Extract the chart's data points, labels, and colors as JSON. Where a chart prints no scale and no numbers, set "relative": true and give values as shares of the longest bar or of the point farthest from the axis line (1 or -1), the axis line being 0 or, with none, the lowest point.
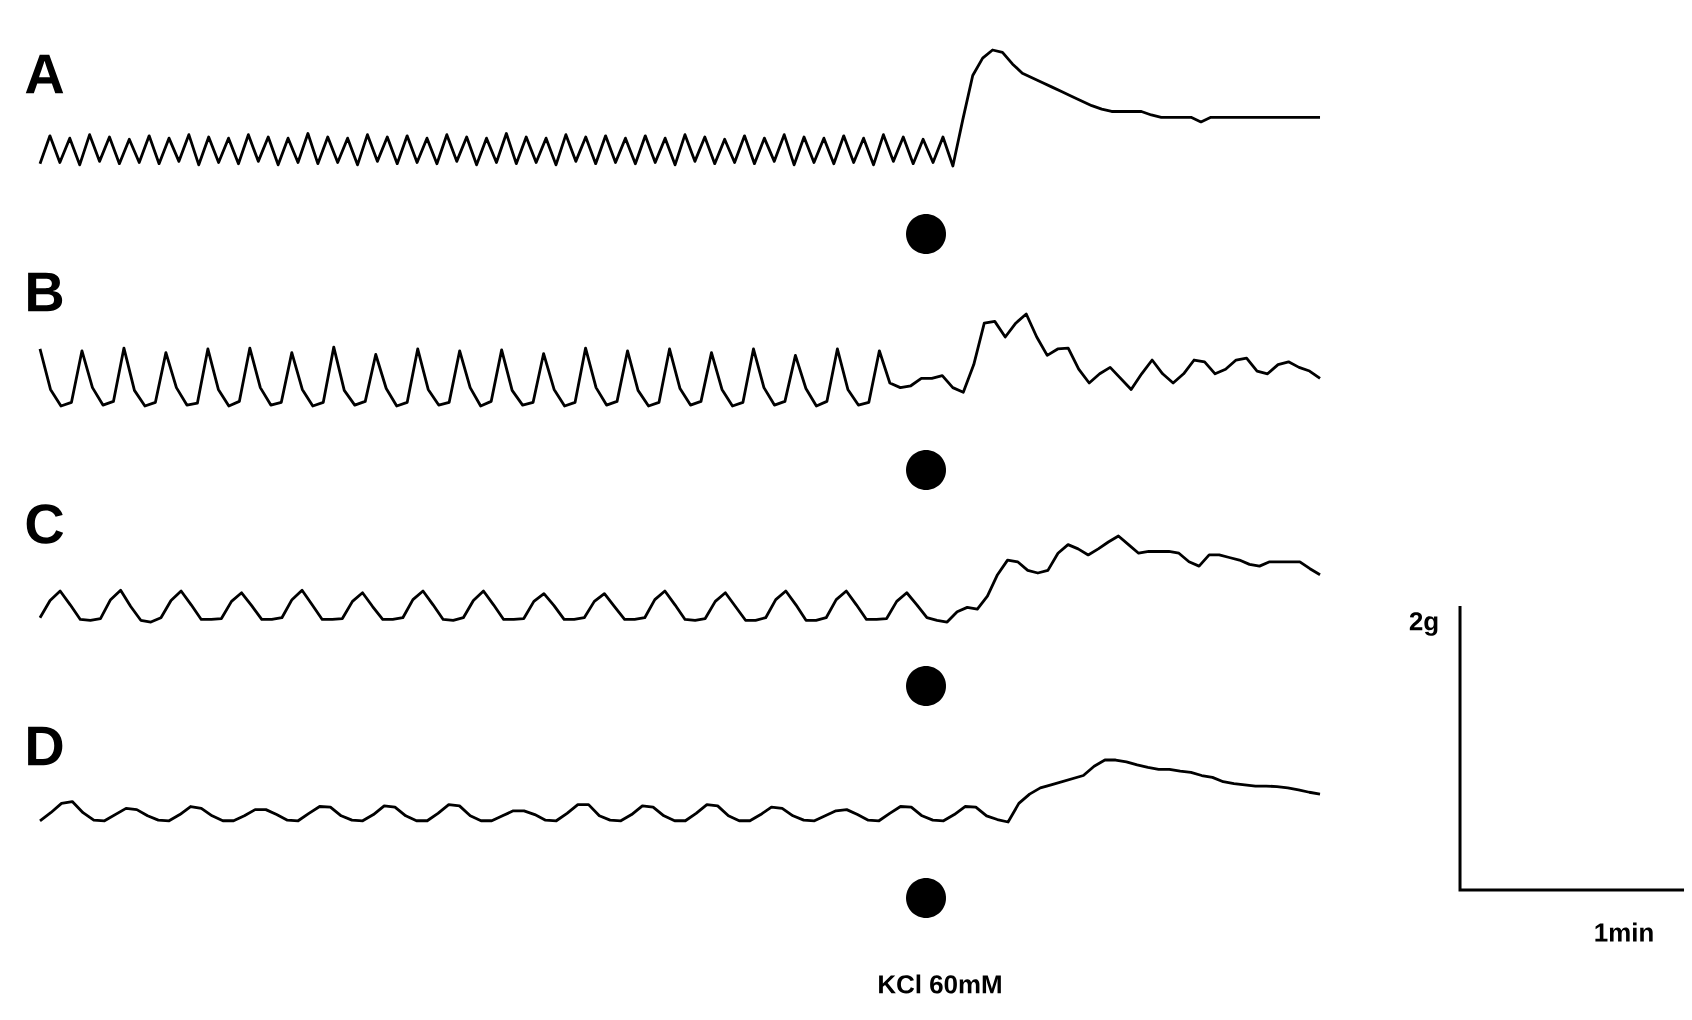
{
  "chart_data": [
    {
      "type": "line",
      "title": "A",
      "relative": true,
      "categories": [
        null,
        null,
        null,
        null,
        null,
        null,
        null,
        null,
        null,
        null,
        null,
        null,
        null,
        null,
        null,
        null,
        null,
        null,
        null,
        null,
        null,
        null,
        null,
        null,
        null,
        null,
        null,
        null,
        null,
        null,
        null,
        null,
        null,
        null,
        null,
        null,
        null,
        null,
        null,
        null,
        null,
        null,
        null,
        null,
        null,
        null,
        null,
        null,
        null,
        null,
        null,
        null,
        null,
        null,
        null,
        null,
        null,
        null,
        null,
        null,
        null,
        null,
        null,
        null,
        null,
        null,
        null,
        null,
        null,
        null,
        null,
        null,
        null,
        null,
        null,
        null,
        null,
        null,
        null,
        null,
        null,
        null,
        null,
        null,
        null,
        null,
        null,
        null,
        null,
        null,
        null,
        null,
        null,
        null,
        null,
        null,
        null,
        null,
        null,
        null,
        null,
        null,
        null,
        null,
        null,
        null,
        null,
        null,
        null,
        null,
        null,
        null,
        null,
        null,
        null,
        null,
        null,
        null,
        null,
        null,
        null,
        null,
        null,
        null,
        null,
        null,
        null,
        null,
        null,
        null
      ],
      "series": [
        {
          "color": "#000000",
          "values": [
            0.02,
            0.26,
            0.03,
            0.24,
            0.01,
            0.27,
            0.04,
            0.25,
            0.02,
            0.23,
            0.03,
            0.26,
            0.02,
            0.24,
            0.04,
            0.27,
            0.01,
            0.25,
            0.03,
            0.24,
            0.02,
            0.27,
            0.04,
            0.25,
            0.01,
            0.24,
            0.03,
            0.28,
            0.02,
            0.25,
            0.03,
            0.24,
            0.01,
            0.27,
            0.04,
            0.25,
            0.02,
            0.26,
            0.03,
            0.24,
            0.02,
            0.27,
            0.04,
            0.25,
            0.01,
            0.24,
            0.03,
            0.28,
            0.02,
            0.25,
            0.03,
            0.24,
            0.01,
            0.27,
            0.04,
            0.25,
            0.02,
            0.26,
            0.03,
            0.24,
            0.02,
            0.26,
            0.03,
            0.24,
            0.01,
            0.27,
            0.04,
            0.25,
            0.02,
            0.23,
            0.03,
            0.26,
            0.02,
            0.24,
            0.04,
            0.27,
            0.01,
            0.25,
            0.03,
            0.24,
            0.02,
            0.26,
            0.03,
            0.24,
            0.01,
            0.27,
            0.04,
            0.25,
            0.02,
            0.23,
            0.03,
            0.25,
            0.0,
            0.4,
            0.78,
            0.93,
            1,
            0.98,
            0.88,
            0.8,
            0.76,
            0.72,
            0.68,
            0.64,
            0.6,
            0.56,
            0.52,
            0.49,
            0.47,
            0.47,
            0.47,
            0.47,
            0.44,
            0.42,
            0.42,
            0.42,
            0.42,
            0.38,
            0.42,
            0.42,
            0.42,
            0.42,
            0.42,
            0.42,
            0.42,
            0.42,
            0.42,
            0.42,
            0.42,
            0.42
          ]
        }
      ]
    },
    {
      "type": "line",
      "title": "B",
      "relative": true,
      "categories": [
        null,
        null,
        null,
        null,
        null,
        null,
        null,
        null,
        null,
        null,
        null,
        null,
        null,
        null,
        null,
        null,
        null,
        null,
        null,
        null,
        null,
        null,
        null,
        null,
        null,
        null,
        null,
        null,
        null,
        null,
        null,
        null,
        null,
        null,
        null,
        null,
        null,
        null,
        null,
        null,
        null,
        null,
        null,
        null,
        null,
        null,
        null,
        null,
        null,
        null,
        null,
        null,
        null,
        null,
        null,
        null,
        null,
        null,
        null,
        null,
        null,
        null,
        null,
        null,
        null,
        null,
        null,
        null,
        null,
        null,
        null,
        null,
        null,
        null,
        null,
        null,
        null,
        null,
        null,
        null,
        null,
        null,
        null,
        null,
        null,
        null,
        null,
        null,
        null,
        null,
        null,
        null,
        null,
        null,
        null,
        null,
        null,
        null,
        null,
        null,
        null,
        null,
        null,
        null,
        null,
        null,
        null,
        null,
        null,
        null,
        null,
        null,
        null,
        null,
        null,
        null,
        null,
        null,
        null,
        null,
        null,
        null,
        null
      ],
      "series": [
        {
          "color": "#000000",
          "values": [
            0.62,
            0.18,
            0.0,
            0.04,
            0.6,
            0.2,
            0.01,
            0.05,
            0.63,
            0.17,
            0.0,
            0.04,
            0.58,
            0.2,
            0.01,
            0.03,
            0.62,
            0.18,
            0.0,
            0.05,
            0.63,
            0.2,
            0.01,
            0.04,
            0.58,
            0.18,
            0.0,
            0.04,
            0.64,
            0.17,
            0.01,
            0.05,
            0.56,
            0.19,
            0.0,
            0.04,
            0.62,
            0.18,
            0.01,
            0.04,
            0.6,
            0.2,
            0.0,
            0.05,
            0.61,
            0.17,
            0.01,
            0.04,
            0.57,
            0.18,
            0.0,
            0.04,
            0.63,
            0.2,
            0.01,
            0.05,
            0.6,
            0.17,
            0.0,
            0.04,
            0.62,
            0.19,
            0.01,
            0.05,
            0.58,
            0.18,
            0.0,
            0.04,
            0.62,
            0.2,
            0.01,
            0.05,
            0.55,
            0.19,
            0.0,
            0.05,
            0.62,
            0.18,
            0.01,
            0.04,
            0.6,
            0.25,
            0.2,
            0.22,
            0.3,
            0.3,
            0.33,
            0.2,
            0.15,
            0.45,
            0.9,
            0.92,
            0.75,
            0.9,
            1.0,
            0.75,
            0.55,
            0.62,
            0.63,
            0.4,
            0.25,
            0.35,
            0.42,
            0.3,
            0.18,
            0.35,
            0.5,
            0.35,
            0.25,
            0.35,
            0.5,
            0.48,
            0.35,
            0.4,
            0.5,
            0.52,
            0.38,
            0.35,
            0.45,
            0.48,
            0.42,
            0.38,
            0.3
          ]
        }
      ]
    },
    {
      "type": "line",
      "title": "C",
      "relative": true,
      "categories": [
        null,
        null,
        null,
        null,
        null,
        null,
        null,
        null,
        null,
        null,
        null,
        null,
        null,
        null,
        null,
        null,
        null,
        null,
        null,
        null,
        null,
        null,
        null,
        null,
        null,
        null,
        null,
        null,
        null,
        null,
        null,
        null,
        null,
        null,
        null,
        null,
        null,
        null,
        null,
        null,
        null,
        null,
        null,
        null,
        null,
        null,
        null,
        null,
        null,
        null,
        null,
        null,
        null,
        null,
        null,
        null,
        null,
        null,
        null,
        null,
        null,
        null,
        null,
        null,
        null,
        null,
        null,
        null,
        null,
        null,
        null,
        null,
        null,
        null,
        null,
        null,
        null,
        null,
        null,
        null,
        null,
        null,
        null,
        null,
        null,
        null,
        null,
        null,
        null,
        null,
        null,
        null,
        null,
        null,
        null,
        null,
        null,
        null,
        null,
        null,
        null,
        null,
        null,
        null,
        null,
        null,
        null,
        null,
        null,
        null,
        null,
        null,
        null,
        null,
        null,
        null,
        null,
        null,
        null,
        null,
        null,
        null,
        null,
        null,
        null,
        null,
        null,
        null
      ],
      "series": [
        {
          "color": "#000000",
          "values": [
            0.05,
            0.25,
            0.36,
            0.2,
            0.03,
            0.02,
            0.04,
            0.26,
            0.37,
            0.18,
            0.02,
            0.0,
            0.05,
            0.25,
            0.36,
            0.2,
            0.03,
            0.03,
            0.04,
            0.24,
            0.34,
            0.19,
            0.03,
            0.03,
            0.05,
            0.26,
            0.37,
            0.2,
            0.03,
            0.03,
            0.04,
            0.24,
            0.34,
            0.18,
            0.03,
            0.03,
            0.05,
            0.26,
            0.36,
            0.2,
            0.03,
            0.02,
            0.05,
            0.25,
            0.36,
            0.2,
            0.03,
            0.03,
            0.04,
            0.24,
            0.33,
            0.19,
            0.03,
            0.03,
            0.05,
            0.24,
            0.33,
            0.18,
            0.03,
            0.03,
            0.05,
            0.26,
            0.36,
            0.2,
            0.03,
            0.02,
            0.04,
            0.24,
            0.34,
            0.18,
            0.02,
            0.02,
            0.05,
            0.26,
            0.36,
            0.2,
            0.02,
            0.02,
            0.05,
            0.26,
            0.36,
            0.2,
            0.03,
            0.03,
            0.04,
            0.24,
            0.34,
            0.2,
            0.05,
            0.02,
            0.0,
            0.12,
            0.17,
            0.15,
            0.3,
            0.55,
            0.72,
            0.7,
            0.6,
            0.57,
            0.6,
            0.8,
            0.9,
            0.85,
            0.78,
            0.85,
            0.93,
            1.0,
            0.9,
            0.8,
            0.82,
            0.82,
            0.82,
            0.8,
            0.7,
            0.65,
            0.78,
            0.78,
            0.75,
            0.72,
            0.67,
            0.65,
            0.7,
            0.7,
            0.7,
            0.7,
            0.62,
            0.55
          ]
        }
      ]
    },
    {
      "type": "line",
      "title": "D",
      "relative": true,
      "categories": [
        null,
        null,
        null,
        null,
        null,
        null,
        null,
        null,
        null,
        null,
        null,
        null,
        null,
        null,
        null,
        null,
        null,
        null,
        null,
        null,
        null,
        null,
        null,
        null,
        null,
        null,
        null,
        null,
        null,
        null,
        null,
        null,
        null,
        null,
        null,
        null,
        null,
        null,
        null,
        null,
        null,
        null,
        null,
        null,
        null,
        null,
        null,
        null,
        null,
        null,
        null,
        null,
        null,
        null,
        null,
        null,
        null,
        null,
        null,
        null,
        null,
        null,
        null,
        null,
        null,
        null,
        null,
        null,
        null,
        null,
        null,
        null,
        null,
        null,
        null,
        null,
        null,
        null,
        null,
        null,
        null,
        null,
        null,
        null,
        null,
        null,
        null,
        null,
        null,
        null,
        null,
        null,
        null,
        null,
        null,
        null,
        null,
        null,
        null,
        null,
        null,
        null,
        null,
        null,
        null,
        null,
        null,
        null,
        null,
        null,
        null,
        null,
        null,
        null,
        null,
        null,
        null,
        null,
        null,
        null
      ],
      "series": [
        {
          "color": "#000000",
          "values": [
            0.02,
            0.15,
            0.3,
            0.33,
            0.15,
            0.03,
            0.02,
            0.12,
            0.22,
            0.2,
            0.1,
            0.03,
            0.02,
            0.12,
            0.25,
            0.22,
            0.1,
            0.02,
            0.02,
            0.1,
            0.2,
            0.2,
            0.12,
            0.03,
            0.02,
            0.14,
            0.25,
            0.24,
            0.1,
            0.03,
            0.02,
            0.12,
            0.26,
            0.24,
            0.1,
            0.02,
            0.02,
            0.14,
            0.28,
            0.26,
            0.1,
            0.02,
            0.02,
            0.1,
            0.18,
            0.18,
            0.12,
            0.03,
            0.02,
            0.14,
            0.28,
            0.28,
            0.1,
            0.03,
            0.02,
            0.12,
            0.26,
            0.24,
            0.1,
            0.02,
            0.02,
            0.14,
            0.28,
            0.26,
            0.1,
            0.02,
            0.02,
            0.12,
            0.24,
            0.22,
            0.1,
            0.03,
            0.02,
            0.1,
            0.18,
            0.2,
            0.12,
            0.03,
            0.02,
            0.14,
            0.25,
            0.24,
            0.1,
            0.03,
            0.02,
            0.12,
            0.25,
            0.24,
            0.1,
            0.04,
            0,
            0.3,
            0.45,
            0.55,
            0.6,
            0.65,
            0.7,
            0.75,
            0.9,
            1,
            1,
            0.97,
            0.92,
            0.88,
            0.85,
            0.85,
            0.82,
            0.8,
            0.75,
            0.72,
            0.65,
            0.62,
            0.6,
            0.58,
            0.58,
            0.57,
            0.55,
            0.52,
            0.48,
            0.45
          ]
        }
      ],
      "annotations": [
        "KCl 60mM",
        "2g",
        "1min"
      ]
    }
  ]
}
